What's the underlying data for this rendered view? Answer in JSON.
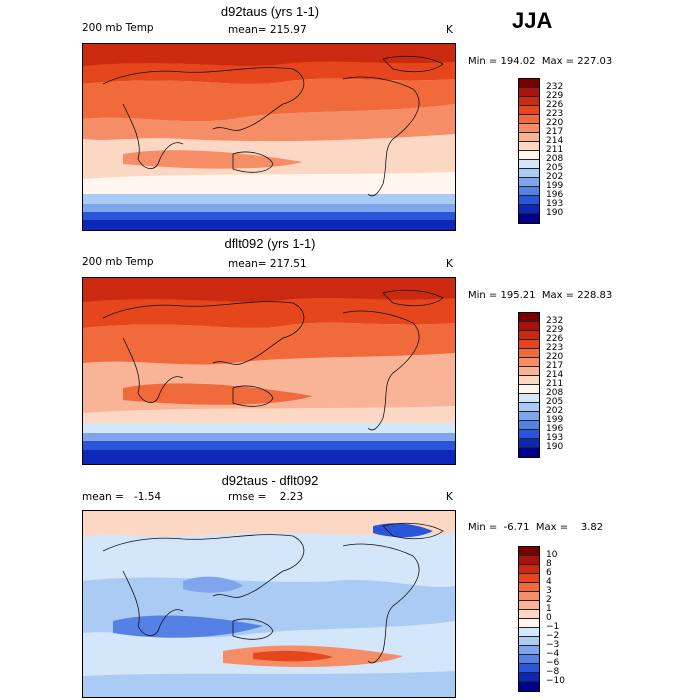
{
  "season": "JJA",
  "panels": [
    {
      "title": "d92taus (yrs 1-1)",
      "left_label": "200 mb Temp",
      "stat_label": "mean= 215.97",
      "unit": "K",
      "minmax": "Min = 194.02  Max = 227.03",
      "colorbar": {
        "labels": [
          "232",
          "229",
          "226",
          "223",
          "220",
          "217",
          "214",
          "211",
          "208",
          "205",
          "202",
          "199",
          "196",
          "193",
          "190"
        ],
        "colors": [
          "#7a0000",
          "#a8130f",
          "#cc2a10",
          "#e6461c",
          "#f06a3c",
          "#f58e66",
          "#f9b497",
          "#fcd8c4",
          "#fff6ef",
          "#d4e6fa",
          "#aacbf3",
          "#7fa6ec",
          "#5580e6",
          "#2b55d8",
          "#0c28b8",
          "#00008a"
        ]
      }
    },
    {
      "title": "dflt092 (yrs 1-1)",
      "left_label": "200 mb Temp",
      "stat_label": "mean= 217.51",
      "unit": "K",
      "minmax": "Min = 195.21  Max = 228.83",
      "colorbar": {
        "labels": [
          "232",
          "229",
          "226",
          "223",
          "220",
          "217",
          "214",
          "211",
          "208",
          "205",
          "202",
          "199",
          "196",
          "193",
          "190"
        ],
        "colors": [
          "#7a0000",
          "#a8130f",
          "#cc2a10",
          "#e6461c",
          "#f06a3c",
          "#f58e66",
          "#f9b497",
          "#fcd8c4",
          "#fff6ef",
          "#d4e6fa",
          "#aacbf3",
          "#7fa6ec",
          "#5580e6",
          "#2b55d8",
          "#0c28b8",
          "#00008a"
        ]
      }
    },
    {
      "title": "d92taus - dflt092",
      "left_label": "mean =   -1.54",
      "stat_label": "rmse =    2.23",
      "unit": "K",
      "minmax": "Min =  -6.71  Max =    3.82",
      "colorbar": {
        "labels": [
          "10",
          "8",
          "6",
          "4",
          "3",
          "2",
          "1",
          "0",
          "−1",
          "−2",
          "−3",
          "−4",
          "−6",
          "−8",
          "−10"
        ],
        "colors": [
          "#7a0000",
          "#a8130f",
          "#cc2a10",
          "#e6461c",
          "#f06a3c",
          "#f58e66",
          "#f9b497",
          "#fcd8c4",
          "#fff6ef",
          "#d4e6fa",
          "#aacbf3",
          "#7fa6ec",
          "#5580e6",
          "#2b55d8",
          "#0c28b8",
          "#00008a"
        ]
      }
    }
  ]
}
